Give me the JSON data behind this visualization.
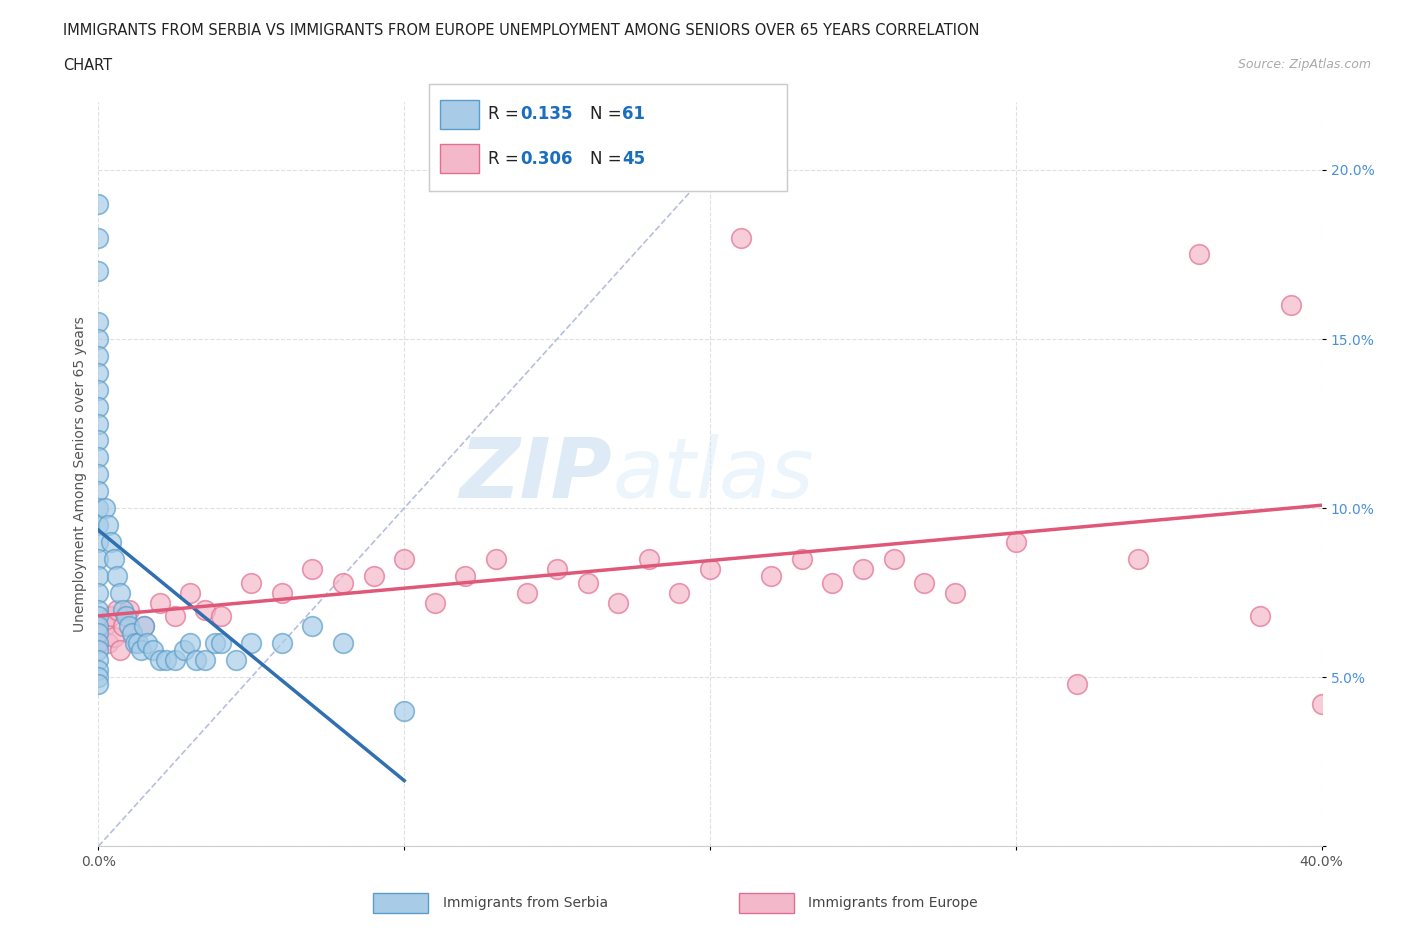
{
  "title_line1": "IMMIGRANTS FROM SERBIA VS IMMIGRANTS FROM EUROPE UNEMPLOYMENT AMONG SENIORS OVER 65 YEARS CORRELATION",
  "title_line2": "CHART",
  "source": "Source: ZipAtlas.com",
  "ylabel": "Unemployment Among Seniors over 65 years",
  "xlim": [
    0.0,
    0.4
  ],
  "ylim": [
    0.0,
    0.22
  ],
  "xticks": [
    0.0,
    0.1,
    0.2,
    0.3,
    0.4
  ],
  "xticklabels": [
    "0.0%",
    "",
    "",
    "",
    "40.0%"
  ],
  "yticks": [
    0.0,
    0.05,
    0.1,
    0.15,
    0.2
  ],
  "yticklabels": [
    "",
    "5.0%",
    "10.0%",
    "15.0%",
    "20.0%"
  ],
  "serbia_color": "#a8cce8",
  "europe_color": "#f4b8cb",
  "serbia_edge_color": "#5a9ec9",
  "europe_edge_color": "#e07090",
  "serbia_line_color": "#3070b0",
  "europe_line_color": "#e05878",
  "diagonal_color": "#b0b8d8",
  "R_serbia": 0.135,
  "N_serbia": 61,
  "R_europe": 0.306,
  "N_europe": 45,
  "serbia_x": [
    0.0,
    0.0,
    0.0,
    0.0,
    0.0,
    0.0,
    0.0,
    0.0,
    0.0,
    0.0,
    0.0,
    0.0,
    0.0,
    0.0,
    0.0,
    0.0,
    0.0,
    0.0,
    0.0,
    0.0,
    0.0,
    0.0,
    0.0,
    0.0,
    0.0,
    0.0,
    0.0,
    0.0,
    0.0,
    0.0,
    0.002,
    0.003,
    0.004,
    0.005,
    0.006,
    0.007,
    0.008,
    0.009,
    0.01,
    0.011,
    0.012,
    0.013,
    0.014,
    0.015,
    0.016,
    0.018,
    0.02,
    0.022,
    0.025,
    0.028,
    0.03,
    0.032,
    0.035,
    0.038,
    0.04,
    0.045,
    0.05,
    0.06,
    0.07,
    0.08,
    0.1
  ],
  "serbia_y": [
    0.19,
    0.18,
    0.17,
    0.155,
    0.15,
    0.145,
    0.14,
    0.135,
    0.13,
    0.125,
    0.12,
    0.115,
    0.11,
    0.105,
    0.1,
    0.095,
    0.09,
    0.085,
    0.08,
    0.075,
    0.07,
    0.068,
    0.065,
    0.063,
    0.06,
    0.058,
    0.055,
    0.052,
    0.05,
    0.048,
    0.1,
    0.095,
    0.09,
    0.085,
    0.08,
    0.075,
    0.07,
    0.068,
    0.065,
    0.063,
    0.06,
    0.06,
    0.058,
    0.065,
    0.06,
    0.058,
    0.055,
    0.055,
    0.055,
    0.058,
    0.06,
    0.055,
    0.055,
    0.06,
    0.06,
    0.055,
    0.06,
    0.06,
    0.065,
    0.06,
    0.04
  ],
  "europe_x": [
    0.002,
    0.003,
    0.004,
    0.005,
    0.006,
    0.007,
    0.008,
    0.01,
    0.015,
    0.02,
    0.025,
    0.03,
    0.035,
    0.04,
    0.05,
    0.06,
    0.07,
    0.08,
    0.09,
    0.1,
    0.11,
    0.12,
    0.13,
    0.14,
    0.15,
    0.16,
    0.17,
    0.18,
    0.19,
    0.2,
    0.21,
    0.22,
    0.23,
    0.24,
    0.25,
    0.26,
    0.28,
    0.3,
    0.32,
    0.34,
    0.36,
    0.38,
    0.39,
    0.4,
    0.27
  ],
  "europe_y": [
    0.065,
    0.06,
    0.068,
    0.062,
    0.07,
    0.058,
    0.065,
    0.07,
    0.065,
    0.072,
    0.068,
    0.075,
    0.07,
    0.068,
    0.078,
    0.075,
    0.082,
    0.078,
    0.08,
    0.085,
    0.072,
    0.08,
    0.085,
    0.075,
    0.082,
    0.078,
    0.072,
    0.085,
    0.075,
    0.082,
    0.18,
    0.08,
    0.085,
    0.078,
    0.082,
    0.085,
    0.075,
    0.09,
    0.048,
    0.085,
    0.175,
    0.068,
    0.16,
    0.042,
    0.078
  ],
  "watermark_zip": "ZIP",
  "watermark_atlas": "atlas",
  "background_color": "#ffffff",
  "grid_color": "#dddddd",
  "legend_r_color": "#1a6ebf",
  "legend_n_color": "#1a6ebf"
}
